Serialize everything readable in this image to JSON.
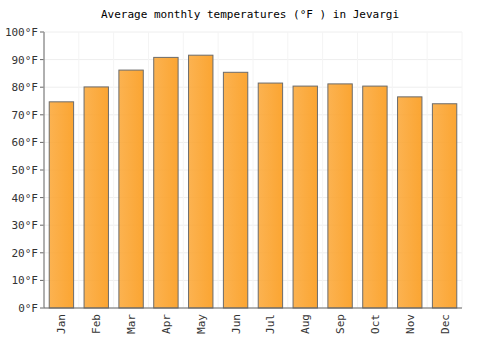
{
  "chart_data": {
    "type": "bar",
    "title": "Average monthly temperatures (°F ) in Jevargi",
    "categories": [
      "Jan",
      "Feb",
      "Mar",
      "Apr",
      "May",
      "Jun",
      "Jul",
      "Aug",
      "Sep",
      "Oct",
      "Nov",
      "Dec"
    ],
    "values": [
      74.7,
      80.1,
      86.2,
      90.8,
      91.6,
      85.4,
      81.5,
      80.4,
      81.2,
      80.4,
      76.5,
      74.0
    ],
    "color": "#fba532",
    "ylim": [
      0,
      100
    ],
    "yticks": [
      {
        "value": 0,
        "label": "0°F"
      },
      {
        "value": 10,
        "label": "10°F"
      },
      {
        "value": 20,
        "label": "20°F"
      },
      {
        "value": 30,
        "label": "30°F"
      },
      {
        "value": 40,
        "label": "40°F"
      },
      {
        "value": 50,
        "label": "50°F"
      },
      {
        "value": 60,
        "label": "60°F"
      },
      {
        "value": 70,
        "label": "70°F"
      },
      {
        "value": 80,
        "label": "80°F"
      },
      {
        "value": 90,
        "label": "90°F"
      },
      {
        "value": 100,
        "label": "100°F"
      }
    ],
    "grid": true
  }
}
